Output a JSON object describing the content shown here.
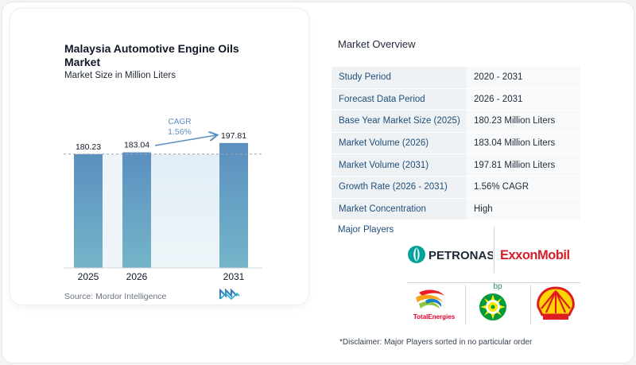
{
  "chart": {
    "title": "Malaysia Automotive Engine Oils Market",
    "subtitle": "Market Size in Million Liters",
    "source": "Source:  Mordor Intelligence",
    "cagr_label": "CAGR",
    "cagr_value": "1.56%"
  },
  "chart_data": {
    "type": "bar",
    "title": "Malaysia Automotive Engine Oils Market",
    "subtitle": "Market Size in Million Liters",
    "categories": [
      "2025",
      "2026",
      "2031"
    ],
    "values": [
      180.23,
      183.04,
      197.81
    ],
    "value_labels": [
      "180.23",
      "183.04",
      "197.81"
    ],
    "annotation": "CAGR 1.56%",
    "colors": {
      "bar_top": "#5b8fbf",
      "bar_bottom": "#74b5c9",
      "gap_shade": "#e4eef6",
      "arrow": "#5b8fbf"
    }
  },
  "overview": {
    "title": "Market Overview",
    "rows": [
      {
        "label": "Study Period",
        "value": "2020 - 2031"
      },
      {
        "label": "Forecast Data Period",
        "value": "2026 - 2031"
      },
      {
        "label": "Base Year Market Size (2025)",
        "value": "180.23 Million Liters"
      },
      {
        "label": "Market Volume (2026)",
        "value": "183.04 Million Liters"
      },
      {
        "label": "Market Volume (2031)",
        "value": "197.81 Million Liters"
      },
      {
        "label": "Growth Rate (2026 - 2031)",
        "value": "1.56% CAGR"
      },
      {
        "label": "Market Concentration",
        "value": "High"
      }
    ]
  },
  "players": {
    "label": "Major Players",
    "logos": {
      "petronas": "PETRONAS",
      "exxonmobil": "ExxonMobil",
      "totalenergies": "TotalEnergies",
      "bp": "bp",
      "shell": "Shell"
    }
  },
  "disclaimer": "*Disclaimer: Major Players sorted in no particular order"
}
